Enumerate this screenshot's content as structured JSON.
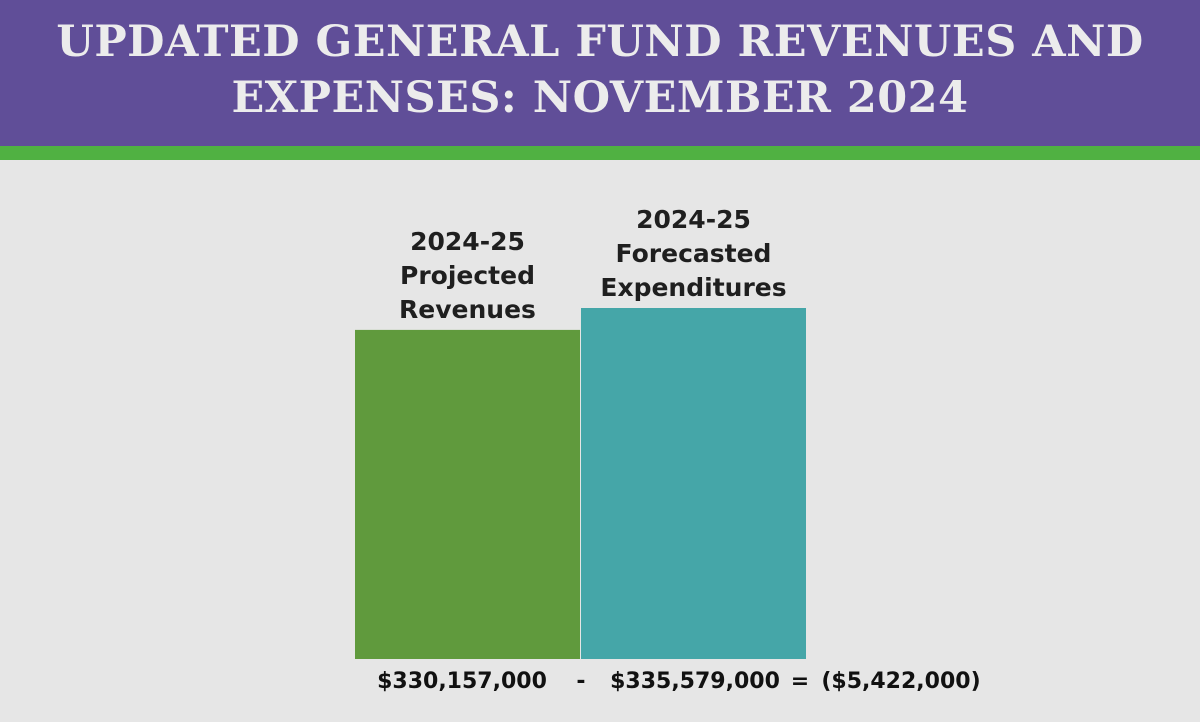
{
  "header": {
    "title_line1": "UPDATED GENERAL FUND REVENUES AND",
    "title_line2": "EXPENSES: NOVEMBER 2024"
  },
  "colors": {
    "header_bg": "#604e98",
    "accent_stripe": "#50b142",
    "revenue_bar": "#609a3d",
    "expenditure_bar": "#45a6a8",
    "deficit_text": "#d8191c"
  },
  "chart_data": {
    "type": "bar",
    "title": "",
    "xlabel": "",
    "ylabel": "",
    "categories": [
      [
        "2024-25",
        "Projected",
        "Revenues"
      ],
      [
        "2024-25",
        "Forecasted",
        "Expenditures"
      ]
    ],
    "values": [
      330157000,
      335579000
    ],
    "ylim": [
      0,
      335579000
    ],
    "grid": false,
    "legend": "none",
    "value_labels": [
      "$330,157,000",
      "$335,579,000"
    ],
    "operator_minus": "-",
    "operator_equals": "=",
    "difference_label": "($5,422,000)",
    "difference_value": -5422000
  }
}
